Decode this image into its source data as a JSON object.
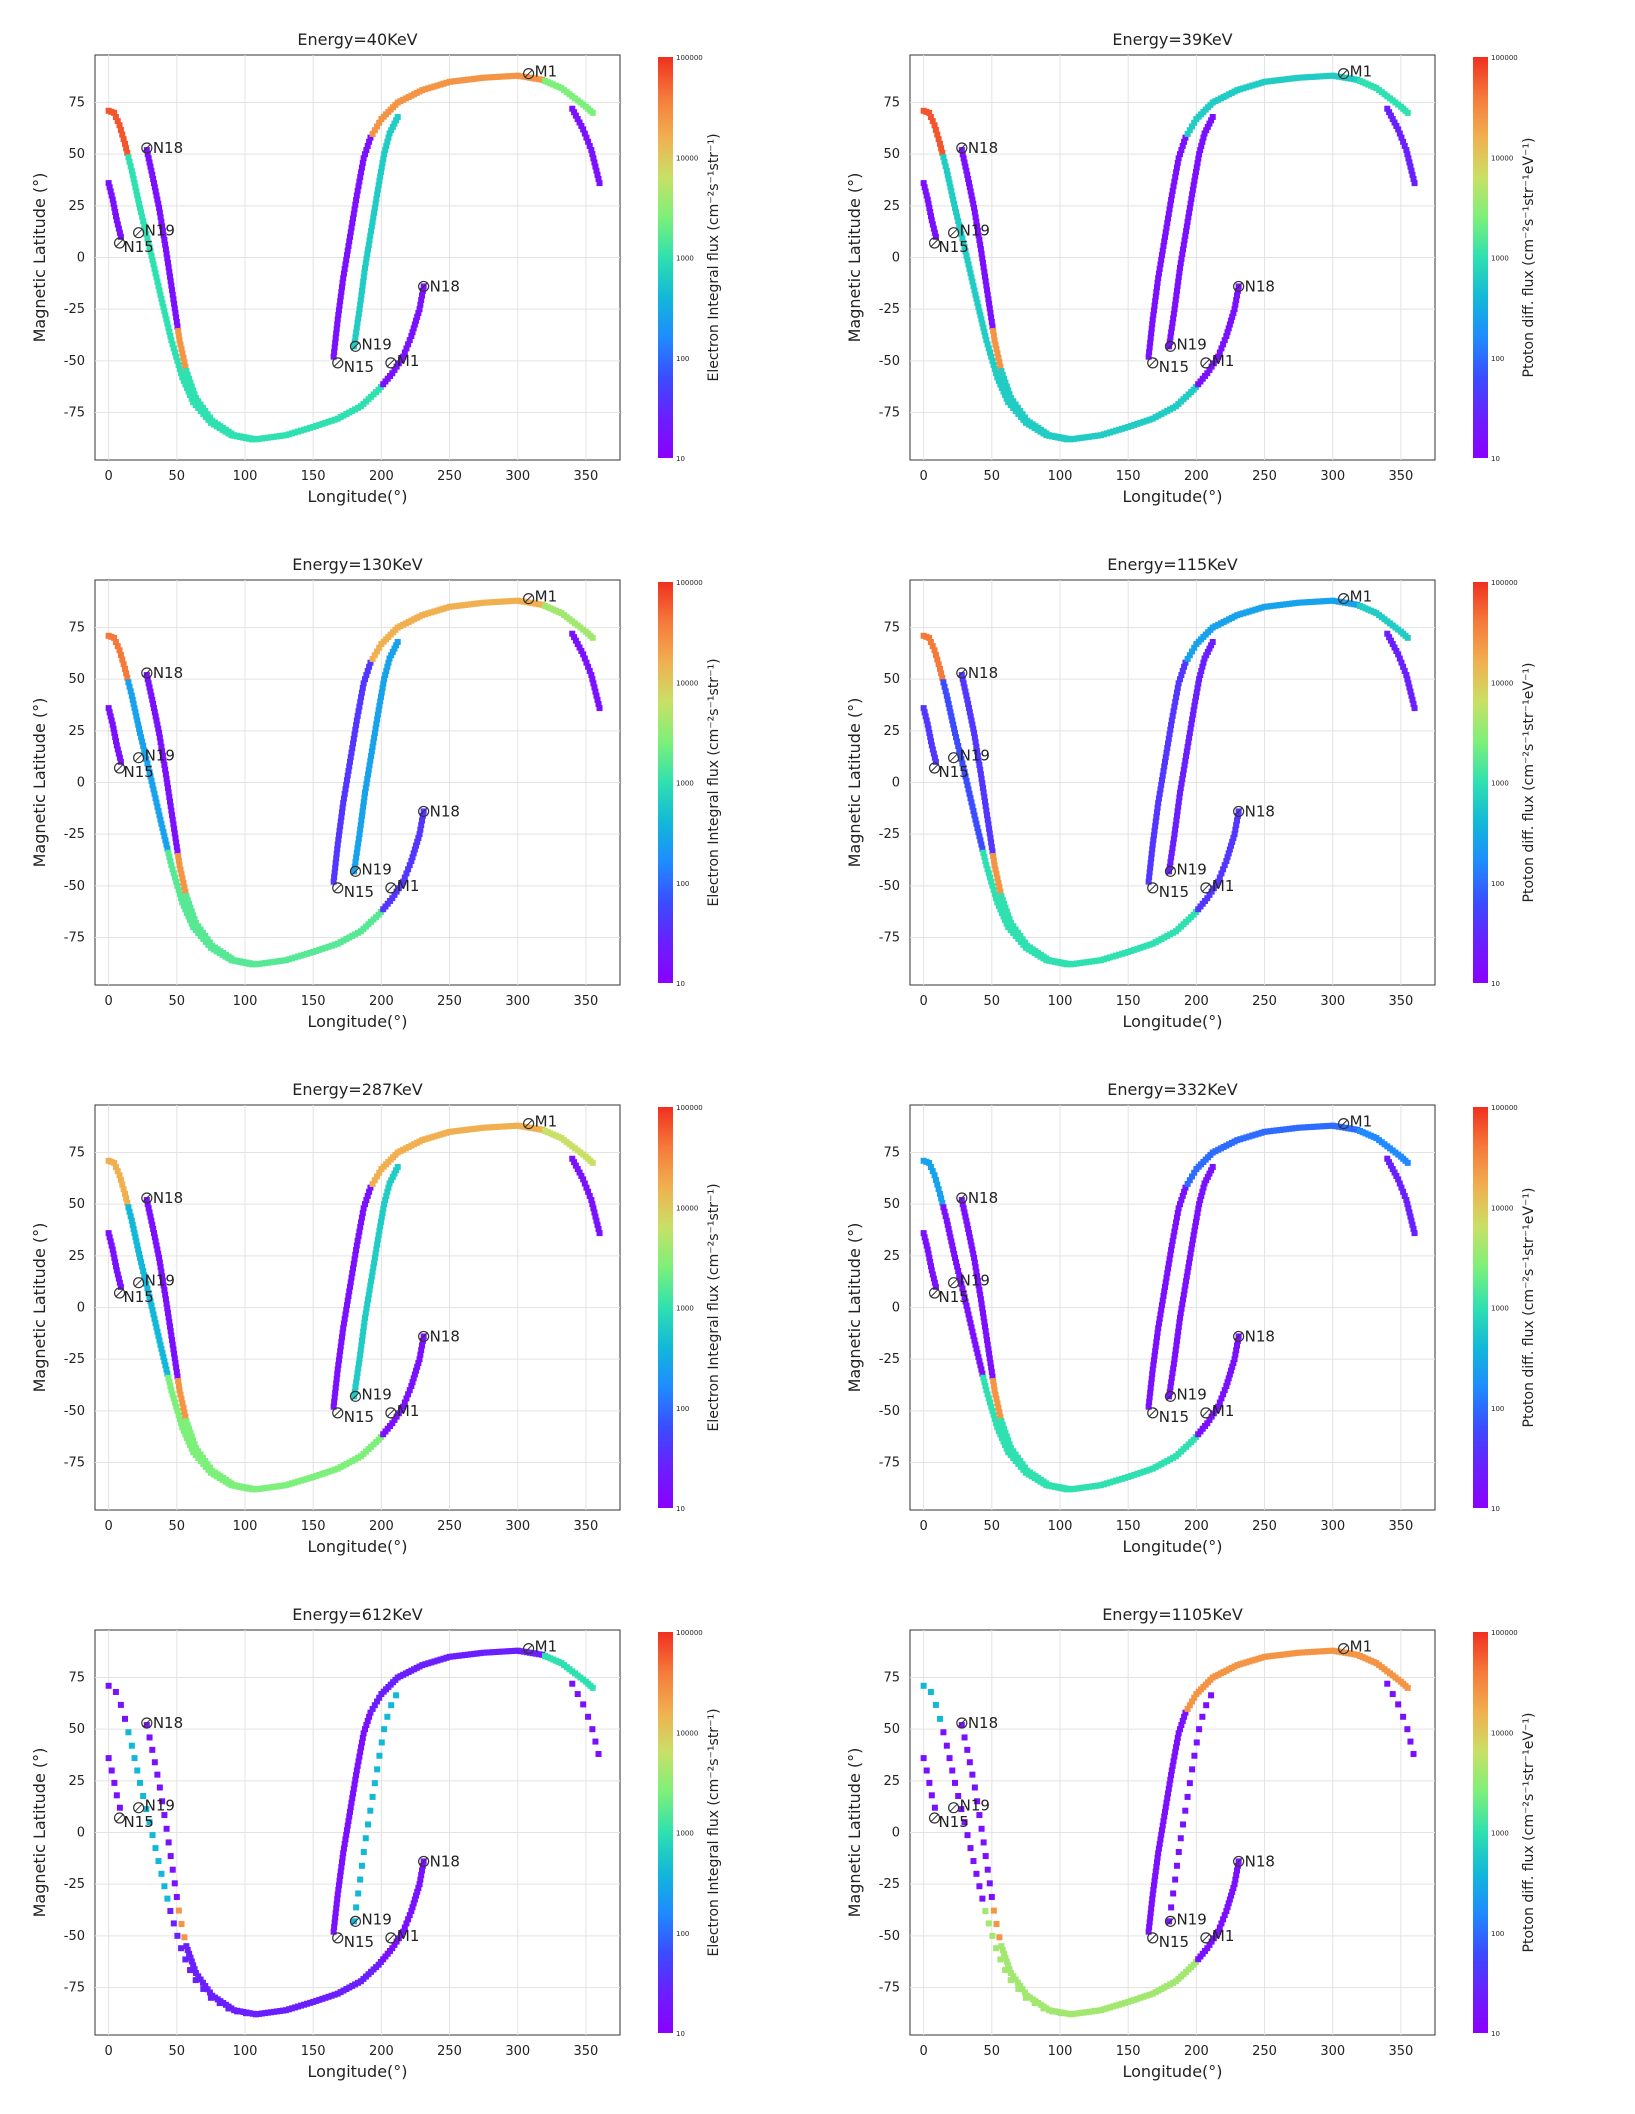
{
  "colors": {
    "scale": [
      "#8b00ff",
      "#6a1fff",
      "#3b4cff",
      "#1f8bff",
      "#12b8d8",
      "#2fe0b0",
      "#7cf07a",
      "#c8e066",
      "#f0b050",
      "#f57a3a",
      "#f03020"
    ],
    "grid": "#e3e3e3",
    "axis": "#333333"
  },
  "shared": {
    "xlabel": "Longitude(°)",
    "ylabel": "Magnetic Latitude (°)",
    "x_ticks": [
      "0",
      "50",
      "100",
      "150",
      "200",
      "250",
      "300",
      "350"
    ],
    "y_ticks": [
      "75",
      "50",
      "25",
      "0",
      "-25",
      "-50",
      "-75"
    ],
    "colorbar_ticks": [
      "100000",
      "10000",
      "1000",
      "100",
      "10"
    ],
    "colorbar_label_electron": "Electron Integral flux (cm⁻²s⁻¹str⁻¹)",
    "colorbar_label_proton": "Ptoton diff. flux (cm⁻²s⁻¹str⁻¹eV⁻¹)",
    "station_labels": {
      "M1": "M1",
      "N18_top": "N18",
      "N19_top": "N19",
      "N15_top": "N15",
      "N18_bottom": "N18",
      "N19_bottom": "N19",
      "N15_bottom": "N15",
      "M1_bottom": "M1"
    }
  },
  "chart_data": [
    {
      "type": "scatter",
      "title": "Energy=40KeV",
      "particle": "electron",
      "xlim": [
        -10,
        375
      ],
      "ylim": [
        -98,
        98
      ],
      "colorbar": {
        "scale": "log",
        "range": [
          10,
          100000
        ]
      },
      "flux_level": {
        "leftTop": 0.95,
        "left": 0.05,
        "leftCyan": 0.5,
        "south": 0.5,
        "rightRise": 0.05,
        "rightCyan": 0.45,
        "top": 0.85,
        "descend": 0.6,
        "rightEnd": 0.05,
        "N18seg": 0.05
      }
    },
    {
      "type": "scatter",
      "title": "Energy=39KeV",
      "particle": "proton",
      "xlim": [
        -10,
        375
      ],
      "ylim": [
        -98,
        98
      ],
      "colorbar": {
        "scale": "log",
        "range": [
          10,
          100000
        ]
      },
      "flux_level": {
        "leftTop": 0.95,
        "left": 0.05,
        "leftCyan": 0.45,
        "south": 0.45,
        "rightRise": 0.05,
        "rightCyan": 0.05,
        "top": 0.45,
        "descend": 0.5,
        "rightEnd": 0.1,
        "N18seg": 0.05
      }
    },
    {
      "type": "scatter",
      "title": "Energy=130KeV",
      "particle": "electron",
      "xlim": [
        -10,
        375
      ],
      "ylim": [
        -98,
        98
      ],
      "colorbar": {
        "scale": "log",
        "range": [
          10,
          100000
        ]
      },
      "flux_level": {
        "leftTop": 0.9,
        "left": 0.05,
        "leftCyan": 0.35,
        "south": 0.55,
        "rightRise": 0.15,
        "rightCyan": 0.35,
        "top": 0.8,
        "descend": 0.65,
        "rightEnd": 0.05,
        "N18seg": 0.05
      }
    },
    {
      "type": "scatter",
      "title": "Energy=115KeV",
      "particle": "proton",
      "xlim": [
        -10,
        375
      ],
      "ylim": [
        -98,
        98
      ],
      "colorbar": {
        "scale": "log",
        "range": [
          10,
          100000
        ]
      },
      "flux_level": {
        "leftTop": 0.9,
        "left": 0.15,
        "leftCyan": 0.2,
        "south": 0.5,
        "rightRise": 0.15,
        "rightCyan": 0.1,
        "top": 0.35,
        "descend": 0.45,
        "rightEnd": 0.1,
        "N18seg": 0.05
      }
    },
    {
      "type": "scatter",
      "title": "Energy=287KeV",
      "particle": "electron",
      "xlim": [
        -10,
        375
      ],
      "ylim": [
        -98,
        98
      ],
      "colorbar": {
        "scale": "log",
        "range": [
          10,
          100000
        ]
      },
      "flux_level": {
        "leftTop": 0.8,
        "left": 0.05,
        "leftCyan": 0.4,
        "south": 0.6,
        "rightRise": 0.05,
        "rightCyan": 0.45,
        "top": 0.8,
        "descend": 0.7,
        "rightEnd": 0.05,
        "N18seg": 0.05
      }
    },
    {
      "type": "scatter",
      "title": "Energy=332KeV",
      "particle": "proton",
      "xlim": [
        -10,
        375
      ],
      "ylim": [
        -98,
        98
      ],
      "colorbar": {
        "scale": "log",
        "range": [
          10,
          100000
        ]
      },
      "flux_level": {
        "leftTop": 0.35,
        "left": 0.05,
        "leftCyan": 0.05,
        "south": 0.5,
        "rightRise": 0.05,
        "rightCyan": 0.05,
        "top": 0.25,
        "descend": 0.3,
        "rightEnd": 0.1,
        "N18seg": 0.05
      }
    },
    {
      "type": "scatter",
      "title": "Energy=612KeV",
      "particle": "electron",
      "xlim": [
        -10,
        375
      ],
      "ylim": [
        -98,
        98
      ],
      "colorbar": {
        "scale": "log",
        "range": [
          10,
          100000
        ]
      },
      "flux_level": {
        "leftTop": 0.05,
        "left": 0.05,
        "leftCyan": 0.4,
        "south": 0.1,
        "rightRise": 0.05,
        "rightCyan": 0.4,
        "top": 0.1,
        "descend": 0.5,
        "rightEnd": 0.05,
        "N18seg": 0.05
      }
    },
    {
      "type": "scatter",
      "title": "Energy=1105KeV",
      "particle": "proton",
      "xlim": [
        -10,
        375
      ],
      "ylim": [
        -98,
        98
      ],
      "colorbar": {
        "scale": "log",
        "range": [
          10,
          100000
        ]
      },
      "flux_level": {
        "leftTop": 0.4,
        "left": 0.05,
        "leftCyan": 0.05,
        "south": 0.65,
        "rightRise": 0.05,
        "rightCyan": 0.05,
        "top": 0.85,
        "descend": 0.85,
        "rightEnd": 0.05,
        "N18seg": 0.05
      }
    }
  ]
}
